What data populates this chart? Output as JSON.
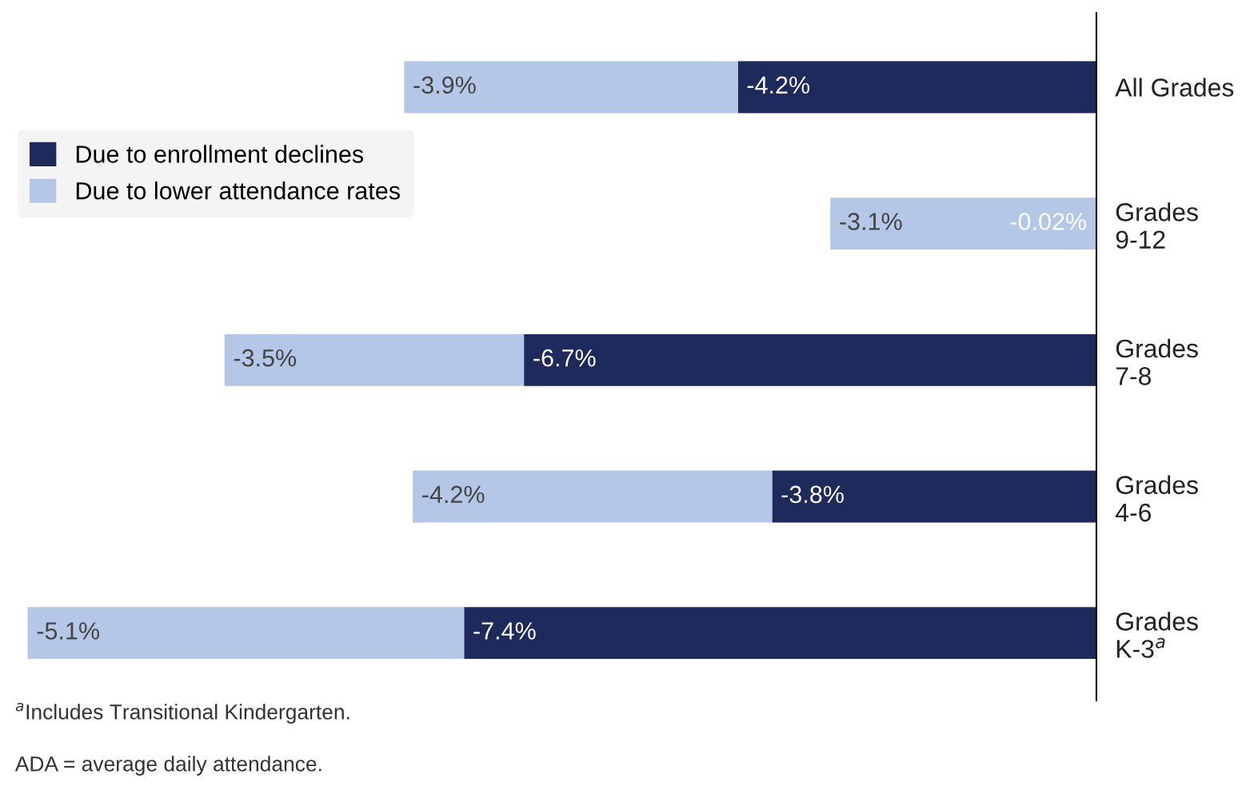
{
  "chart_data": {
    "type": "bar",
    "orientation": "horizontal",
    "stacked": true,
    "categories": [
      "All Grades",
      "Grades\n9-12",
      "Grades\n7-8",
      "Grades\n4-6",
      "Grades\nK-3$^{a}$"
    ],
    "series": [
      {
        "name": "Due to enrollment declines",
        "color": "#1f2a5c",
        "values": [
          -4.2,
          -0.02,
          -6.7,
          -3.8,
          -7.4
        ],
        "value_labels": [
          "-4.2%",
          "-0.02%",
          "-6.7%",
          "-3.8%",
          "-7.4%"
        ]
      },
      {
        "name": "Due to lower attendance rates",
        "color": "#b4c7e7",
        "values": [
          -3.9,
          -3.1,
          -3.5,
          -4.2,
          -5.1
        ],
        "value_labels": [
          "-3.9%",
          "-3.1%",
          "-3.5%",
          "-4.2%",
          "-5.1%"
        ]
      }
    ],
    "legend": "top left",
    "grid": false,
    "annotations": [
      "$^{a}$Includes Transitional Kindergarten.",
      "ADA = average daily attendance."
    ]
  }
}
